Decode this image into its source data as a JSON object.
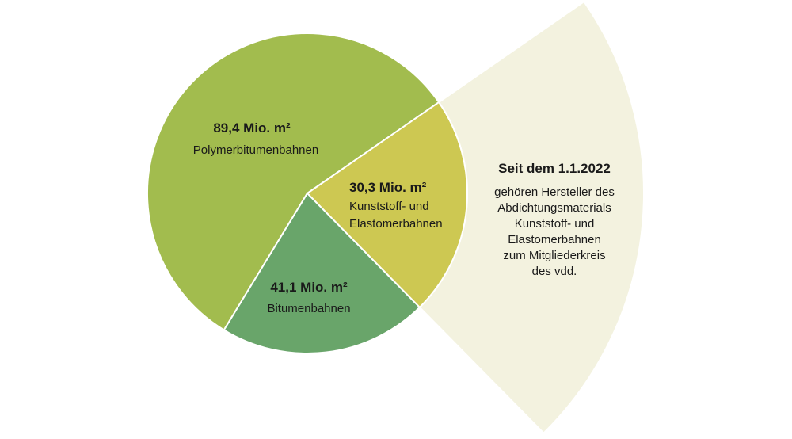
{
  "chart_data": {
    "type": "pie",
    "unit": "Mio. m²",
    "slices": [
      {
        "label": "Polymerbitumenbahnen",
        "value": 89.4,
        "value_label": "89,4 Mio. m²",
        "color": "#a2bc4e"
      },
      {
        "label": "Kunststoff- und Elastomerbahnen",
        "label_lines": [
          "Kunststoff- und",
          "Elastomerbahnen"
        ],
        "value": 30.3,
        "value_label": "30,3 Mio. m²",
        "color": "#cdc852"
      },
      {
        "label": "Bitumenbahnen",
        "value": 41.1,
        "value_label": "41,1 Mio. m²",
        "color": "#69a56a"
      }
    ],
    "callout": {
      "title": "Seit dem 1.1.2022",
      "lines": [
        "gehören Hersteller des",
        "Abdichtungsmaterials",
        "Kunststoff- und",
        "Elastomerbahnen",
        "zum Mitgliederkreis",
        "des vdd."
      ],
      "color": "#f3f2df"
    },
    "legend": "none"
  }
}
